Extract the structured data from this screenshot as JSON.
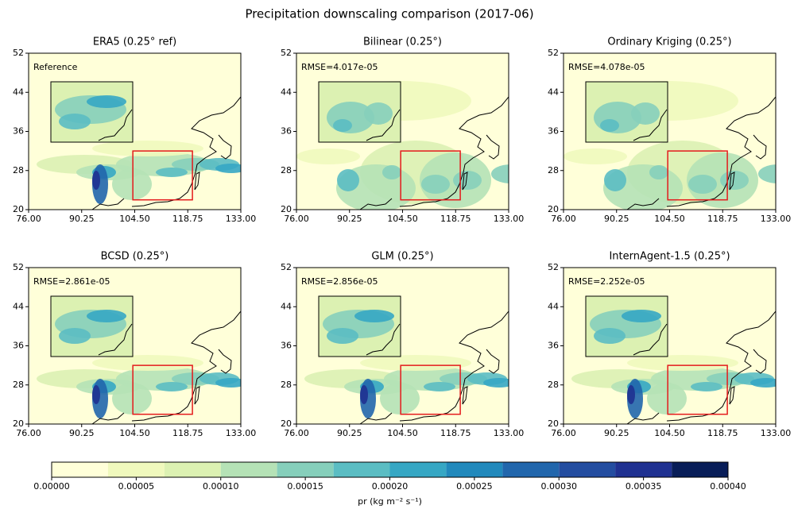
{
  "title": "Precipitation downscaling comparison (2017-06)",
  "chart_data": [
    {
      "type": "map",
      "title": "ERA5 (0.25° ref)",
      "annotation": "Reference",
      "xlim": [
        76,
        133
      ],
      "ylim": [
        20,
        52
      ],
      "xticks": [
        {
          "value": 76,
          "label": "76.00"
        },
        {
          "value": 90.25,
          "label": "90.25"
        },
        {
          "value": 104.5,
          "label": "104.50"
        },
        {
          "value": 118.75,
          "label": "118.75"
        },
        {
          "value": 133,
          "label": "133.00"
        }
      ],
      "yticks": [
        20,
        28,
        36,
        44,
        52
      ],
      "inset_region": {
        "lon": [
          104,
          120
        ],
        "lat": [
          22,
          32
        ]
      }
    },
    {
      "type": "map",
      "title": "Bilinear (0.25°)",
      "annotation": "RMSE=4.017e-05",
      "xlim": [
        76,
        133
      ],
      "ylim": [
        20,
        52
      ],
      "xticks": [
        {
          "value": 76,
          "label": "76.00"
        },
        {
          "value": 90.25,
          "label": "90.25"
        },
        {
          "value": 104.5,
          "label": "104.50"
        },
        {
          "value": 118.75,
          "label": "118.75"
        },
        {
          "value": 133,
          "label": "133.00"
        }
      ],
      "yticks": [
        20,
        28,
        36,
        44,
        52
      ],
      "inset_region": {
        "lon": [
          104,
          120
        ],
        "lat": [
          22,
          32
        ]
      }
    },
    {
      "type": "map",
      "title": "Ordinary Kriging (0.25°)",
      "annotation": "RMSE=4.078e-05",
      "xlim": [
        76,
        133
      ],
      "ylim": [
        20,
        52
      ],
      "xticks": [
        {
          "value": 76,
          "label": "76.00"
        },
        {
          "value": 90.25,
          "label": "90.25"
        },
        {
          "value": 104.5,
          "label": "104.50"
        },
        {
          "value": 118.75,
          "label": "118.75"
        },
        {
          "value": 133,
          "label": "133.00"
        }
      ],
      "yticks": [
        20,
        28,
        36,
        44,
        52
      ],
      "inset_region": {
        "lon": [
          104,
          120
        ],
        "lat": [
          22,
          32
        ]
      }
    },
    {
      "type": "map",
      "title": "BCSD (0.25°)",
      "annotation": "RMSE=2.861e-05",
      "xlim": [
        76,
        133
      ],
      "ylim": [
        20,
        52
      ],
      "xticks": [
        {
          "value": 76,
          "label": "76.00"
        },
        {
          "value": 90.25,
          "label": "90.25"
        },
        {
          "value": 104.5,
          "label": "104.50"
        },
        {
          "value": 118.75,
          "label": "118.75"
        },
        {
          "value": 133,
          "label": "133.00"
        }
      ],
      "yticks": [
        20,
        28,
        36,
        44,
        52
      ],
      "inset_region": {
        "lon": [
          104,
          120
        ],
        "lat": [
          22,
          32
        ]
      }
    },
    {
      "type": "map",
      "title": "GLM (0.25°)",
      "annotation": "RMSE=2.856e-05",
      "xlim": [
        76,
        133
      ],
      "ylim": [
        20,
        52
      ],
      "xticks": [
        {
          "value": 76,
          "label": "76.00"
        },
        {
          "value": 90.25,
          "label": "90.25"
        },
        {
          "value": 104.5,
          "label": "104.50"
        },
        {
          "value": 118.75,
          "label": "118.75"
        },
        {
          "value": 133,
          "label": "133.00"
        }
      ],
      "yticks": [
        20,
        28,
        36,
        44,
        52
      ],
      "inset_region": {
        "lon": [
          104,
          120
        ],
        "lat": [
          22,
          32
        ]
      }
    },
    {
      "type": "map",
      "title": "InternAgent-1.5 (0.25°)",
      "annotation": "RMSE=2.252e-05",
      "xlim": [
        76,
        133
      ],
      "ylim": [
        20,
        52
      ],
      "xticks": [
        {
          "value": 76,
          "label": "76.00"
        },
        {
          "value": 90.25,
          "label": "90.25"
        },
        {
          "value": 104.5,
          "label": "104.50"
        },
        {
          "value": 118.75,
          "label": "118.75"
        },
        {
          "value": 133,
          "label": "133.00"
        }
      ],
      "yticks": [
        20,
        28,
        36,
        44,
        52
      ],
      "inset_region": {
        "lon": [
          104,
          120
        ],
        "lat": [
          22,
          32
        ]
      }
    }
  ],
  "colorbar": {
    "label": "pr (kg m⁻² s⁻¹)",
    "lim": [
      0,
      0.0004
    ],
    "ticks": [
      {
        "value": 0,
        "label": "0.00000"
      },
      {
        "value": 5e-05,
        "label": "0.00005"
      },
      {
        "value": 0.0001,
        "label": "0.00010"
      },
      {
        "value": 0.00015,
        "label": "0.00015"
      },
      {
        "value": 0.0002,
        "label": "0.00020"
      },
      {
        "value": 0.00025,
        "label": "0.00025"
      },
      {
        "value": 0.0003,
        "label": "0.00030"
      },
      {
        "value": 0.00035,
        "label": "0.00035"
      },
      {
        "value": 0.0004,
        "label": "0.00040"
      }
    ],
    "levels": [
      0,
      3.33e-05,
      6.67e-05,
      0.0001,
      0.0001333,
      0.0001667,
      0.0002,
      0.0002333,
      0.0002667,
      0.0003,
      0.0003333,
      0.0003667,
      0.0004
    ],
    "colors": [
      "#ffffd9",
      "#f0f9bd",
      "#dcf1b2",
      "#b5e2b6",
      "#86cfbb",
      "#5bbdc3",
      "#36a7c4",
      "#2189bc",
      "#2166ac",
      "#234da0",
      "#1f3191",
      "#081d58"
    ]
  }
}
